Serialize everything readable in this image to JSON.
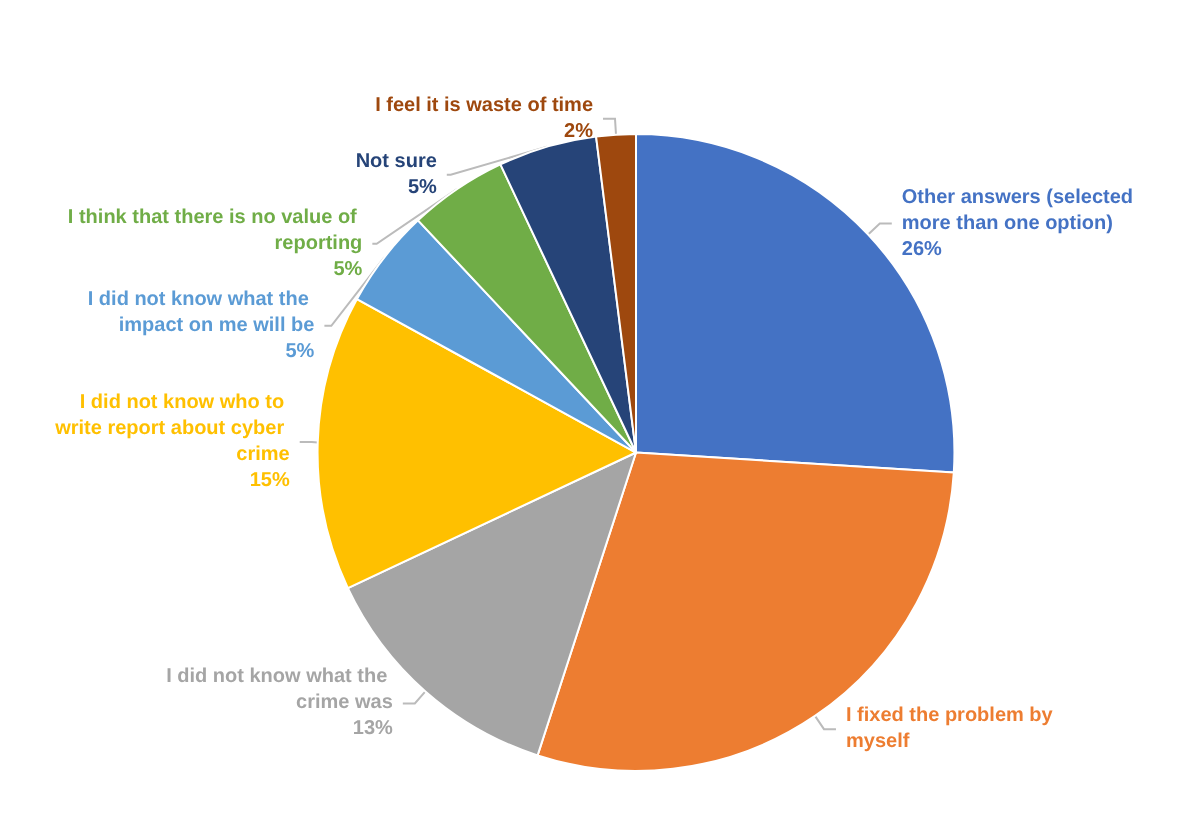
{
  "chart_data": {
    "type": "pie",
    "categories": [
      "Other answers (selected more than one option)",
      "I fixed the problem by myself",
      "I did not know what the crime was",
      "I did not know who to write report about cyber crime",
      "I did not know what the impact on me will be",
      "I think that there is no value of reporting",
      "Not sure",
      "I feel it is waste of time"
    ],
    "values": [
      26,
      29,
      13,
      15,
      5,
      5,
      5,
      2
    ],
    "value_labels": [
      "26%",
      null,
      "13%",
      "15%",
      "5%",
      "5%",
      "5%",
      "2%"
    ],
    "colors": [
      "#4472c4",
      "#ed7d31",
      "#a5a5a5",
      "#ffc000",
      "#5b9bd5",
      "#70ad47",
      "#264478",
      "#9e480e"
    ]
  }
}
